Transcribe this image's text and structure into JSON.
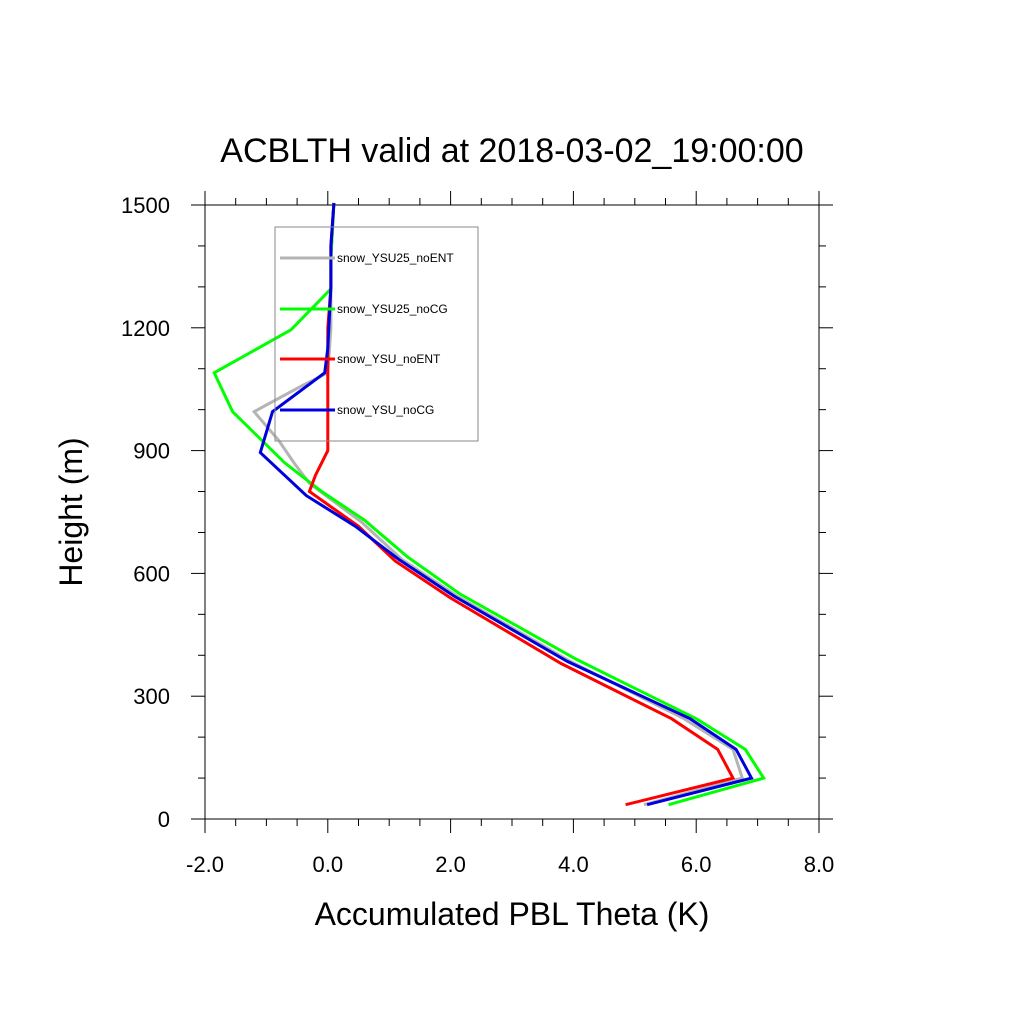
{
  "chart_data": {
    "type": "line",
    "title": "ACBLTH valid at 2018-03-02_19:00:00",
    "xlabel": "Accumulated PBL Theta (K)",
    "ylabel": "Height (m)",
    "xlim": [
      -2.0,
      8.0
    ],
    "ylim": [
      0,
      1500
    ],
    "xticks": [
      -2.0,
      0.0,
      2.0,
      4.0,
      6.0,
      8.0
    ],
    "xtick_labels": [
      "-2.0",
      "0.0",
      "2.0",
      "4.0",
      "6.0",
      "8.0"
    ],
    "yticks": [
      0,
      300,
      600,
      900,
      1200,
      1500
    ],
    "ytick_labels": [
      "0",
      "300",
      "600",
      "900",
      "1200",
      "1500"
    ],
    "grid": false,
    "legend_position": "top-left",
    "series": [
      {
        "name": "snow_YSU25_noENT",
        "color": "#b4b4b4",
        "points": [
          [
            5.15,
            35
          ],
          [
            6.75,
            100
          ],
          [
            6.6,
            170
          ],
          [
            5.8,
            245
          ],
          [
            3.95,
            385
          ],
          [
            2.1,
            545
          ],
          [
            1.2,
            635
          ],
          [
            0.55,
            725
          ],
          [
            -0.3,
            820
          ],
          [
            -0.55,
            870
          ],
          [
            -0.8,
            925
          ],
          [
            -1.2,
            995
          ],
          [
            -0.4,
            1060
          ],
          [
            0.0,
            1090
          ],
          [
            0.05,
            1200
          ],
          [
            0.05,
            1370
          ],
          [
            0.1,
            1505
          ]
        ]
      },
      {
        "name": "snow_YSU25_noCG",
        "color": "#00ff00",
        "points": [
          [
            5.55,
            35
          ],
          [
            7.1,
            100
          ],
          [
            6.8,
            170
          ],
          [
            6.0,
            245
          ],
          [
            4.05,
            390
          ],
          [
            2.15,
            550
          ],
          [
            1.3,
            640
          ],
          [
            0.6,
            730
          ],
          [
            -0.1,
            800
          ],
          [
            -0.7,
            870
          ],
          [
            -1.55,
            995
          ],
          [
            -1.85,
            1090
          ],
          [
            -0.6,
            1195
          ],
          [
            0.05,
            1295
          ],
          [
            0.05,
            1370
          ],
          [
            0.1,
            1505
          ]
        ]
      },
      {
        "name": "snow_YSU_noENT",
        "color": "#ff0000",
        "points": [
          [
            4.85,
            35
          ],
          [
            6.6,
            100
          ],
          [
            6.35,
            170
          ],
          [
            5.6,
            245
          ],
          [
            3.8,
            380
          ],
          [
            2.0,
            540
          ],
          [
            1.1,
            630
          ],
          [
            0.5,
            715
          ],
          [
            -0.3,
            800
          ],
          [
            -0.2,
            840
          ],
          [
            0.0,
            900
          ],
          [
            0.0,
            1000
          ],
          [
            0.0,
            1100
          ],
          [
            0.0,
            1200
          ],
          [
            0.05,
            1300
          ],
          [
            0.05,
            1400
          ],
          [
            0.1,
            1505
          ]
        ]
      },
      {
        "name": "snow_YSU_noCG",
        "color": "#0000dd",
        "points": [
          [
            5.2,
            35
          ],
          [
            6.9,
            100
          ],
          [
            6.65,
            170
          ],
          [
            5.9,
            245
          ],
          [
            3.9,
            385
          ],
          [
            2.05,
            545
          ],
          [
            1.15,
            635
          ],
          [
            0.45,
            715
          ],
          [
            -0.35,
            790
          ],
          [
            -1.1,
            895
          ],
          [
            -0.9,
            995
          ],
          [
            -0.05,
            1090
          ],
          [
            0.0,
            1150
          ],
          [
            0.05,
            1300
          ],
          [
            0.05,
            1400
          ],
          [
            0.1,
            1505
          ]
        ]
      }
    ]
  }
}
